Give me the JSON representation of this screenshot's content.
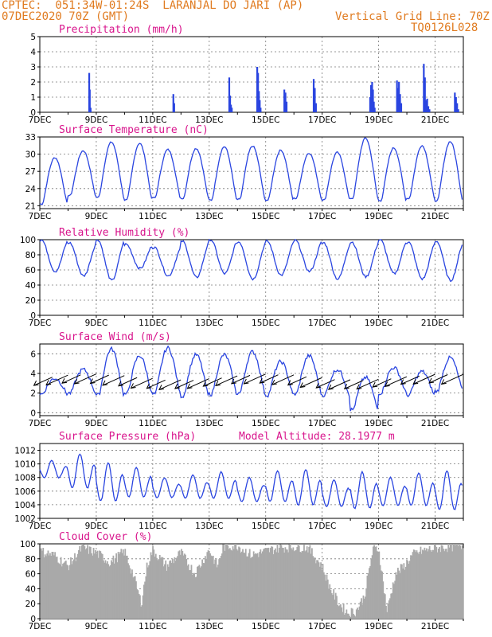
{
  "header": {
    "line1": "CPTEC:  051:34W-01:24S  LARANJAL DO JARI (AP)",
    "line2": "07DEC2020 70Z (GMT)",
    "grid_note": "Vertical Grid Line: 70Z",
    "code": "TQ0126L028",
    "model_altitude": "Model Altitude: 28.1977 m"
  },
  "colors": {
    "line": "#2a45e0",
    "bar": "#2a45e0",
    "cloud": "#a9a9a9",
    "title": "#d8148c",
    "header": "#e07b20"
  },
  "x_axis": {
    "range": [
      0,
      15
    ],
    "major_labels": [
      "7DEC",
      "9DEC",
      "11DEC",
      "13DEC",
      "15DEC",
      "17DEC",
      "19DEC",
      "21DEC"
    ],
    "major_pos": [
      0,
      2,
      4,
      6,
      8,
      10,
      12,
      14
    ]
  },
  "chart_data": [
    {
      "type": "bar",
      "title": "Precipitation (mm/h)",
      "ylim": [
        0,
        5
      ],
      "yticks": [
        0,
        1,
        2,
        3,
        4,
        5
      ],
      "x": [
        1.75,
        1.77,
        1.8,
        4.73,
        4.76,
        6.71,
        6.74,
        6.77,
        6.8,
        7.7,
        7.73,
        7.76,
        7.79,
        7.82,
        8.66,
        8.7,
        8.74,
        9.7,
        9.74,
        9.78,
        11.7,
        11.73,
        11.77,
        11.8,
        11.83,
        11.86,
        12.65,
        12.68,
        12.72,
        12.76,
        12.8,
        13.6,
        13.64,
        13.68,
        13.72,
        13.76,
        13.8,
        14.7,
        14.74,
        14.78,
        14.82
      ],
      "values": [
        2.6,
        1.5,
        0.3,
        1.2,
        0.6,
        2.3,
        1.1,
        0.5,
        0.3,
        3.0,
        2.6,
        1.4,
        0.8,
        0.3,
        1.5,
        1.3,
        0.7,
        2.2,
        1.6,
        0.6,
        1.0,
        1.8,
        2.0,
        1.5,
        0.7,
        0.3,
        2.1,
        1.6,
        2.0,
        1.2,
        0.6,
        3.2,
        2.3,
        0.8,
        0.9,
        0.4,
        0.2,
        1.3,
        1.0,
        0.6,
        0.2
      ]
    },
    {
      "type": "line",
      "title": "Surface Temperature (nC)",
      "ylim": [
        20.5,
        33
      ],
      "yticks": [
        21,
        24,
        27,
        30,
        33
      ],
      "day_min": [
        21.3,
        22.8,
        22.5,
        22.0,
        22.4,
        22.3,
        22.0,
        22.1,
        22.0,
        22.3,
        22.0,
        22.3,
        21.9,
        22.3,
        21.9
      ],
      "day_max": [
        29.4,
        30.6,
        32.1,
        31.9,
        30.8,
        31.0,
        31.3,
        31.4,
        30.7,
        30.2,
        30.3,
        32.8,
        31.1,
        31.5,
        32.2
      ]
    },
    {
      "type": "line",
      "title": "Relative Humidity (%)",
      "ylim": [
        0,
        100
      ],
      "yticks": [
        0,
        20,
        40,
        60,
        80,
        100
      ],
      "day_min": [
        58,
        52,
        46,
        62,
        52,
        50,
        55,
        48,
        53,
        58,
        48,
        51,
        55,
        48,
        46
      ],
      "day_max": [
        100,
        96,
        100,
        94,
        90,
        98,
        100,
        97,
        98,
        99,
        96,
        97,
        100,
        97,
        98
      ]
    },
    {
      "type": "line",
      "title": "Surface Wind (m/s)",
      "ylim": [
        -0.3,
        7
      ],
      "yticks": [
        0,
        2,
        4,
        6
      ],
      "day_min": [
        1.9,
        2.0,
        1.8,
        1.9,
        1.9,
        1.7,
        1.9,
        2.0,
        1.8,
        1.9,
        1.8,
        0.3,
        2.0,
        1.8,
        2.2
      ],
      "day_max": [
        3.5,
        4.4,
        6.5,
        5.8,
        6.6,
        5.9,
        5.9,
        6.2,
        5.2,
        5.8,
        4.4,
        3.6,
        4.6,
        4.2,
        5.6
      ],
      "vector_note": "wind barbs: direction arrows pointing south-west"
    },
    {
      "type": "line",
      "title": "Surface Pressure (hPa)",
      "ylim": [
        1002,
        1013
      ],
      "yticks": [
        1002,
        1004,
        1006,
        1008,
        1010,
        1012
      ],
      "day_max": [
        1010.5,
        1011.5,
        1010.2,
        1009.5,
        1008.0,
        1008.4,
        1008.8,
        1008.0,
        1009.0,
        1009.2,
        1007.7,
        1008.8,
        1008.0,
        1008.7,
        1009.0
      ],
      "day_min": [
        1007.5,
        1005.5,
        1003.5,
        1004.3,
        1004.5,
        1004.3,
        1004.2,
        1003.8,
        1003.6,
        1003.0,
        1003.0,
        1002.5,
        1003.1,
        1003.0,
        1002.2
      ]
    },
    {
      "type": "bar",
      "title": "Cloud Cover (%)",
      "ylim": [
        0,
        100
      ],
      "yticks": [
        0,
        20,
        40,
        60,
        80,
        100
      ],
      "segments_x": [
        0,
        0.5,
        1.0,
        1.5,
        2.0,
        2.5,
        3.0,
        3.3,
        3.6,
        3.8,
        4.0,
        4.5,
        5.0,
        5.5,
        6.0,
        6.3,
        6.5,
        7.0,
        7.5,
        8.0,
        8.5,
        9.0,
        9.5,
        10.0,
        10.3,
        10.6,
        10.9,
        11.2,
        11.5,
        11.8,
        12.0,
        12.3,
        12.6,
        12.9,
        13.2,
        13.5,
        14.0,
        14.5,
        15.0
      ],
      "segments_val": [
        90,
        85,
        70,
        95,
        88,
        75,
        90,
        60,
        20,
        70,
        92,
        70,
        88,
        60,
        92,
        70,
        96,
        98,
        85,
        90,
        95,
        96,
        95,
        70,
        40,
        20,
        8,
        10,
        30,
        92,
        94,
        10,
        60,
        70,
        85,
        90,
        94,
        96,
        98
      ]
    }
  ]
}
